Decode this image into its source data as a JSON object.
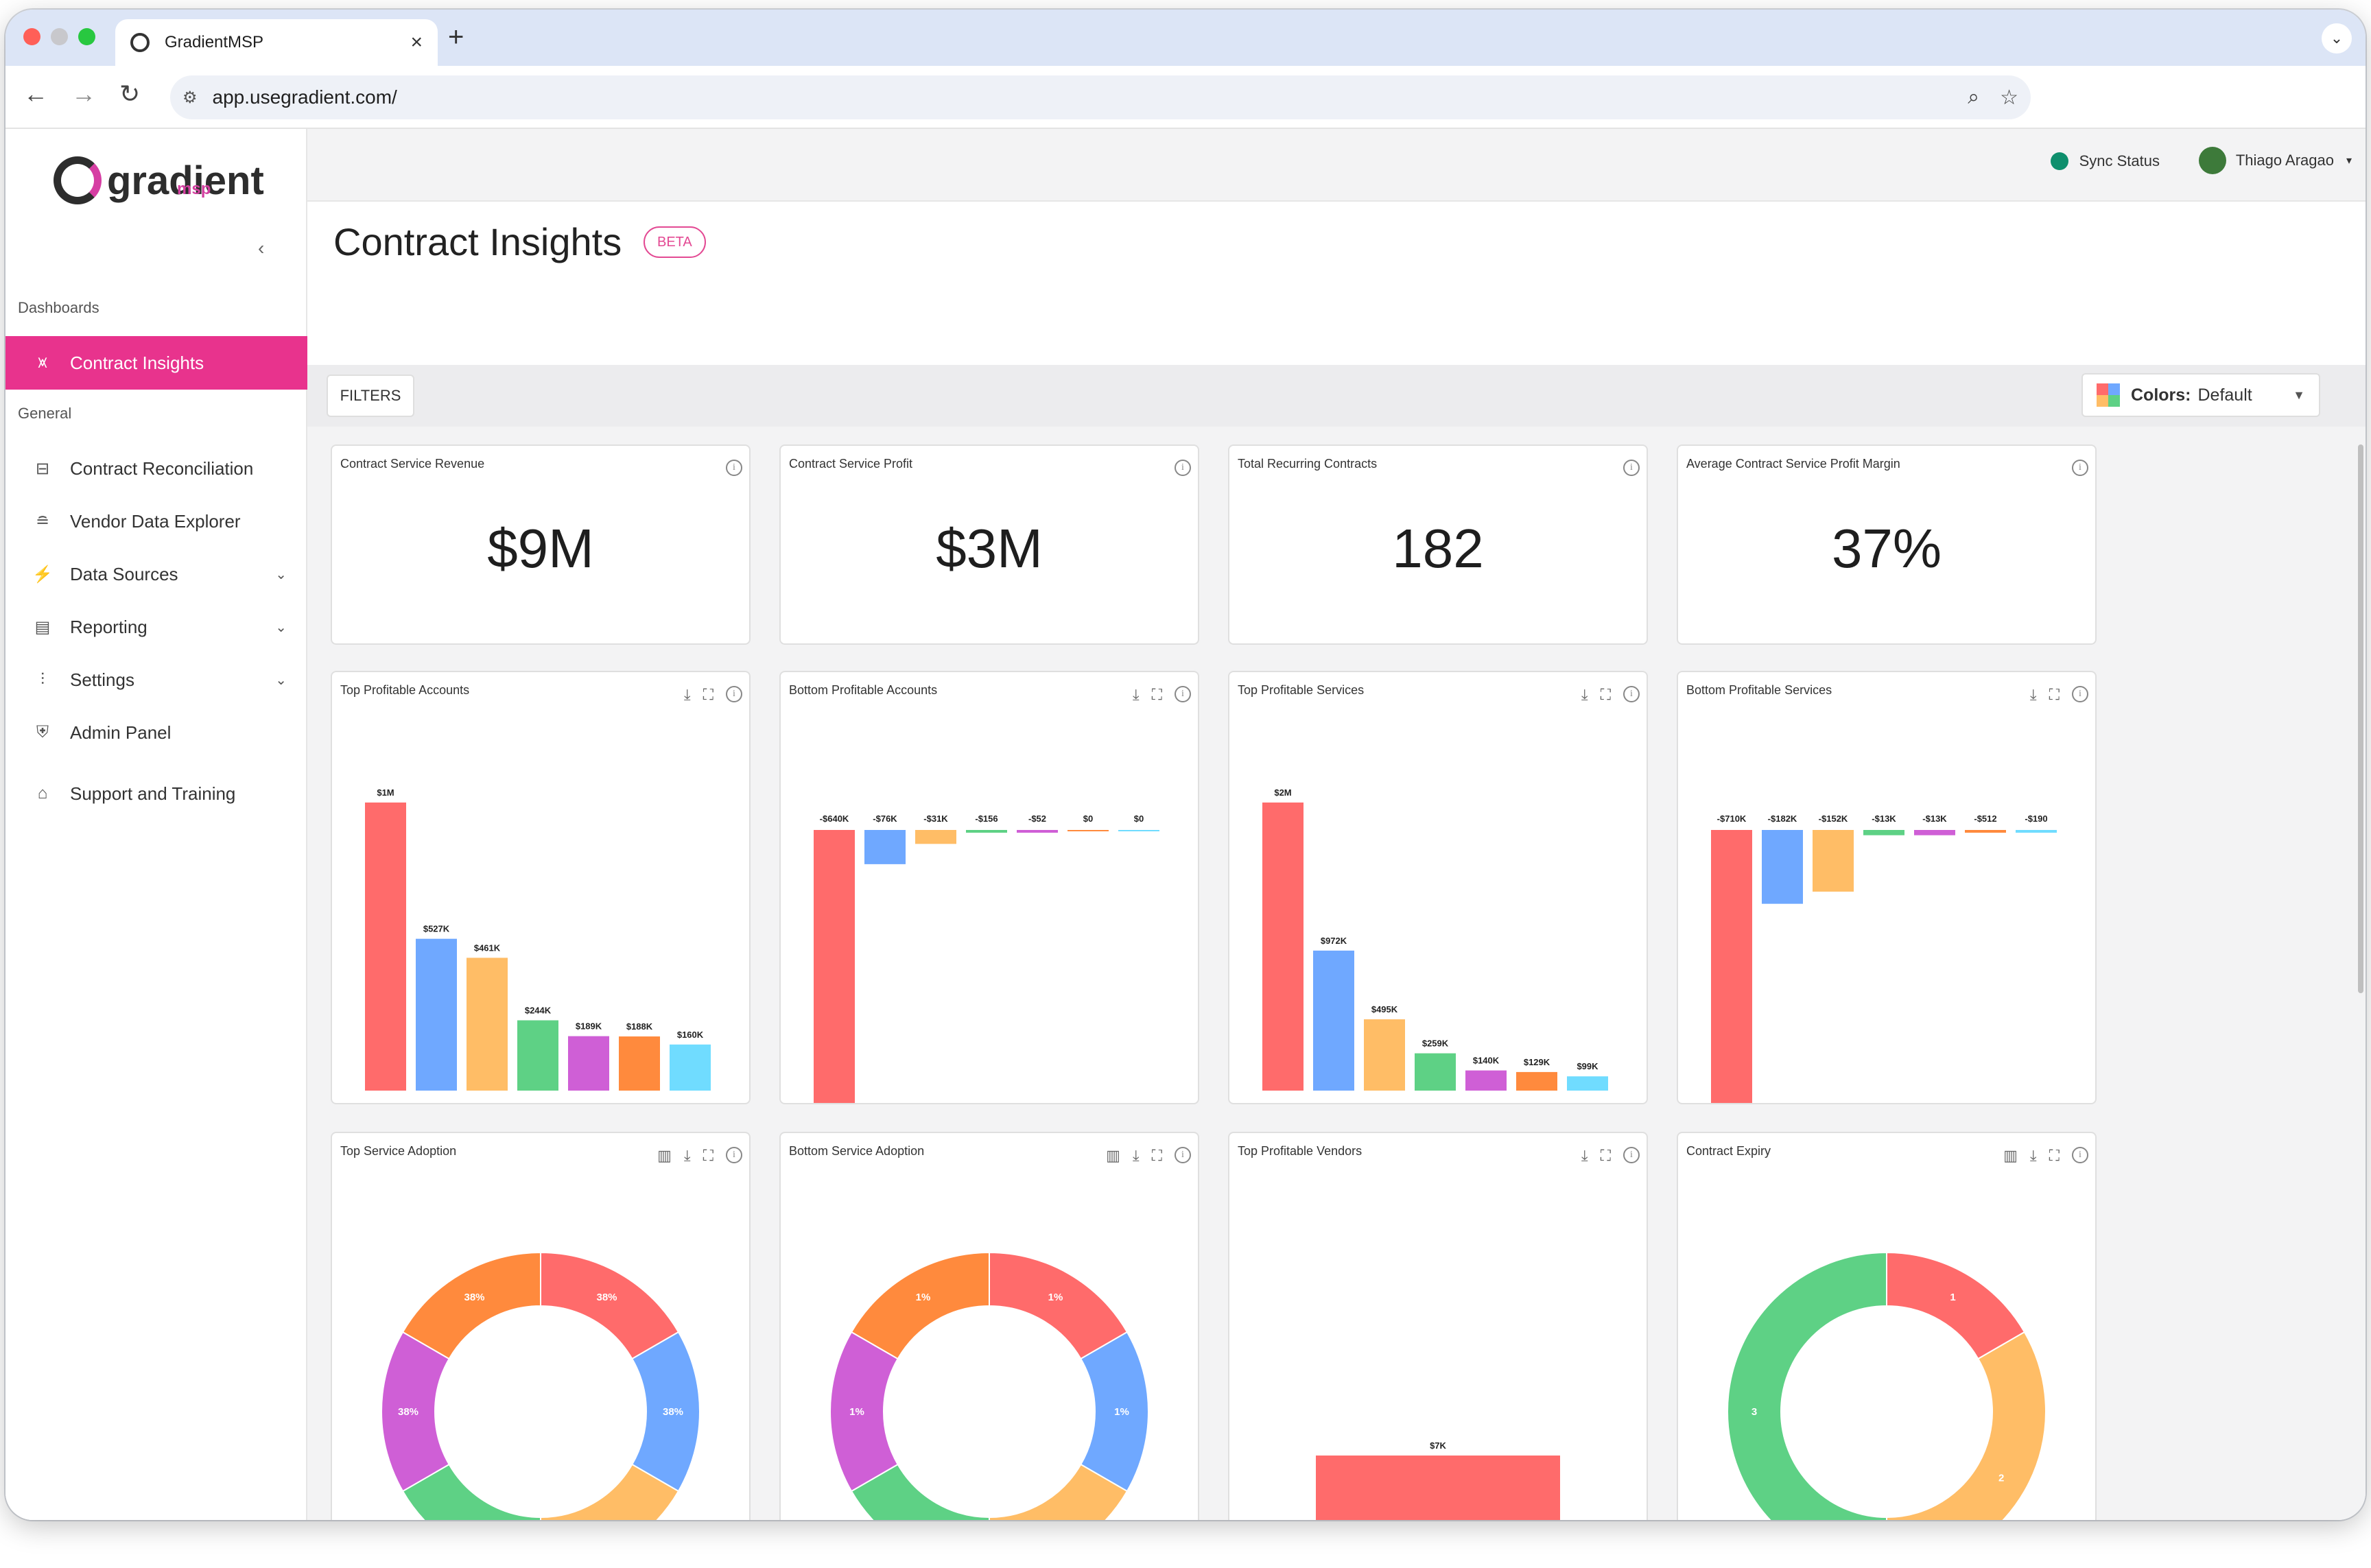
{
  "browser": {
    "tab_title": "GradientMSP",
    "tab_close": "×",
    "new_tab": "+",
    "tab_menu": "⌄",
    "url": "app.usegradient.com/"
  },
  "app": {
    "logo_text": "gradient",
    "logo_sub": "msp",
    "collapse": "‹",
    "sync_label": "Sync Status",
    "user_name": "Thiago Aragao",
    "user_caret": "▾"
  },
  "sidebar": {
    "section_dashboards": "Dashboards",
    "section_general": "General",
    "items": [
      {
        "label": "Contract Insights",
        "icon": "chart-icon"
      },
      {
        "label": "Contract Reconciliation",
        "icon": "reconcile-icon"
      },
      {
        "label": "Vendor Data Explorer",
        "icon": "database-icon"
      },
      {
        "label": "Data Sources",
        "icon": "plug-icon",
        "chevron": "⌄"
      },
      {
        "label": "Reporting",
        "icon": "report-icon",
        "chevron": "⌄"
      },
      {
        "label": "Settings",
        "icon": "sliders-icon",
        "chevron": "⌄"
      },
      {
        "label": "Admin Panel",
        "icon": "shield-icon"
      },
      {
        "label": "Support and Training",
        "icon": "graduation-icon"
      }
    ]
  },
  "page": {
    "title": "Contract Insights",
    "badge": "BETA",
    "filters": "FILTERS",
    "colors_label": "Colors:",
    "colors_value": "Default"
  },
  "kpis": [
    {
      "title": "Contract Service Revenue",
      "value": "$9M"
    },
    {
      "title": "Contract Service Profit",
      "value": "$3M"
    },
    {
      "title": "Total Recurring Contracts",
      "value": "182"
    },
    {
      "title": "Average Contract Service Profit Margin",
      "value": "37%"
    }
  ],
  "palette": [
    "#ff6b6b",
    "#6fa8ff",
    "#ffbd66",
    "#5ed185",
    "#cf5fd6",
    "#ff8a3d",
    "#70dcff"
  ],
  "chart_data": [
    {
      "type": "bar",
      "title": "Top Profitable Accounts",
      "values": [
        1000000,
        527000,
        461000,
        244000,
        189000,
        188000,
        160000
      ],
      "labels": [
        "$1M",
        "$527K",
        "$461K",
        "$244K",
        "$189K",
        "$188K",
        "$160K"
      ]
    },
    {
      "type": "bar",
      "title": "Bottom Profitable Accounts",
      "values": [
        -640000,
        -76000,
        -31000,
        -156,
        -52,
        0,
        0
      ],
      "labels": [
        "-$640K",
        "-$76K",
        "-$31K",
        "-$156",
        "-$52",
        "$0",
        "$0"
      ]
    },
    {
      "type": "bar",
      "title": "Top Profitable Services",
      "values": [
        2000000,
        972000,
        495000,
        259000,
        140000,
        129000,
        99000
      ],
      "labels": [
        "$2M",
        "$972K",
        "$495K",
        "$259K",
        "$140K",
        "$129K",
        "$99K"
      ]
    },
    {
      "type": "bar",
      "title": "Bottom Profitable Services",
      "values": [
        -710000,
        -182000,
        -152000,
        -13000,
        -13000,
        -512,
        -190
      ],
      "labels": [
        "-$710K",
        "-$182K",
        "-$152K",
        "-$13K",
        "-$13K",
        "-$512",
        "-$190"
      ]
    },
    {
      "type": "pie",
      "title": "Top Service Adoption",
      "values": [
        1,
        1,
        1,
        1,
        1,
        1
      ],
      "labels": [
        "38%",
        "38%",
        "38%",
        "38%",
        "38%",
        "38%"
      ],
      "colors": [
        "#ff6b6b",
        "#6fa8ff",
        "#ffbd66",
        "#5ed185",
        "#cf5fd6",
        "#ff8a3d",
        "#70dcff"
      ]
    },
    {
      "type": "pie",
      "title": "Bottom Service Adoption",
      "values": [
        1,
        1,
        1,
        1,
        1,
        1
      ],
      "labels": [
        "1%",
        "1%",
        "1%",
        "1%",
        "1%",
        "1%"
      ],
      "colors": [
        "#ff6b6b",
        "#6fa8ff",
        "#ffbd66",
        "#5ed185",
        "#cf5fd6",
        "#ff8a3d",
        "#70dcff"
      ]
    },
    {
      "type": "bar",
      "title": "Top Profitable Vendors",
      "values": [
        7000
      ],
      "labels": [
        "$7K"
      ]
    },
    {
      "type": "pie",
      "title": "Contract Expiry",
      "values": [
        1,
        2,
        3
      ],
      "labels": [
        "1",
        "2",
        "3"
      ],
      "colors": [
        "#ff6b6b",
        "#ffbd66",
        "#5ed185"
      ]
    }
  ],
  "help": "?"
}
